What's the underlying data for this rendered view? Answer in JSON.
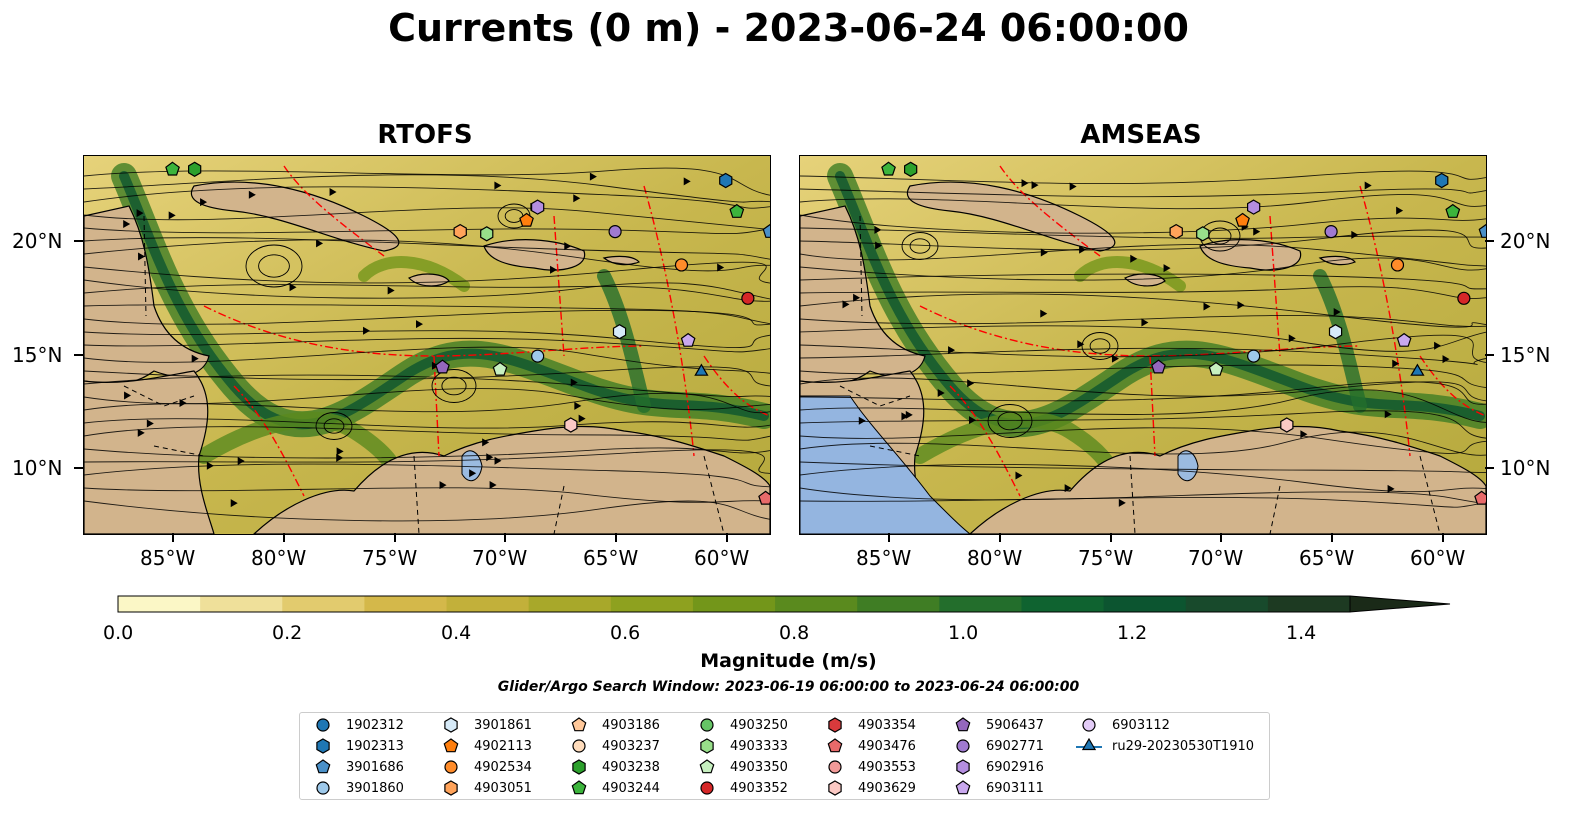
{
  "title": "Currents (0 m) - 2023-06-24 06:00:00",
  "panels": [
    {
      "title": "RTOFS"
    },
    {
      "title": "AMSEAS"
    }
  ],
  "axes": {
    "lon_labels": [
      "85°W",
      "80°W",
      "75°W",
      "70°W",
      "65°W",
      "60°W"
    ],
    "lat_labels": [
      "20°N",
      "15°N",
      "10°N"
    ],
    "lon_range": [
      -89,
      -58
    ],
    "lat_range": [
      7,
      24
    ]
  },
  "colorbar": {
    "label": "Magnitude (m/s)",
    "ticks": [
      "0.0",
      "0.2",
      "0.4",
      "0.6",
      "0.8",
      "1.0",
      "1.2",
      "1.4"
    ],
    "range": [
      0.0,
      1.5
    ],
    "extend": "max",
    "colors": [
      "#fbf7c6",
      "#efe09a",
      "#e2cb6e",
      "#d4b84a",
      "#c2b03a",
      "#a8a82a",
      "#8ea11f",
      "#73961a",
      "#5a8a1e",
      "#3f7d24",
      "#236e2c",
      "#0f6330",
      "#0c5530",
      "#184a2c",
      "#1d3a22",
      "#1a2a18"
    ]
  },
  "search_window": "Glider/Argo Search Window: 2023-06-19 06:00:00 to 2023-06-24 06:00:00",
  "legend": {
    "items": [
      {
        "label": "1902312",
        "marker": "circle",
        "color": "#1f77b4"
      },
      {
        "label": "1902313",
        "marker": "hexagon",
        "color": "#1f77b4"
      },
      {
        "label": "3901686",
        "marker": "pentagon",
        "color": "#4a90c8"
      },
      {
        "label": "3901860",
        "marker": "circle",
        "color": "#9ec9ea"
      },
      {
        "label": "3901861",
        "marker": "hexagon",
        "color": "#d6eaf8"
      },
      {
        "label": "4902113",
        "marker": "pentagon",
        "color": "#ff7f0e"
      },
      {
        "label": "4902534",
        "marker": "circle",
        "color": "#ff8c2a"
      },
      {
        "label": "4903051",
        "marker": "hexagon",
        "color": "#ffa35a"
      },
      {
        "label": "4903186",
        "marker": "pentagon",
        "color": "#ffc89a"
      },
      {
        "label": "4903237",
        "marker": "circle",
        "color": "#ffdcbc"
      },
      {
        "label": "4903238",
        "marker": "hexagon",
        "color": "#2ca02c"
      },
      {
        "label": "4903244",
        "marker": "pentagon",
        "color": "#3cb43c"
      },
      {
        "label": "4903250",
        "marker": "circle",
        "color": "#66c466"
      },
      {
        "label": "4903333",
        "marker": "hexagon",
        "color": "#98df8a"
      },
      {
        "label": "4903350",
        "marker": "pentagon",
        "color": "#c7f0c0"
      },
      {
        "label": "4903352",
        "marker": "circle",
        "color": "#d62728"
      },
      {
        "label": "4903354",
        "marker": "hexagon",
        "color": "#d83a3c"
      },
      {
        "label": "4903476",
        "marker": "pentagon",
        "color": "#e86a6a"
      },
      {
        "label": "4903553",
        "marker": "circle",
        "color": "#f29a98"
      },
      {
        "label": "4903629",
        "marker": "hexagon",
        "color": "#fbc9c4"
      },
      {
        "label": "5906437",
        "marker": "pentagon",
        "color": "#9467bd"
      },
      {
        "label": "6902771",
        "marker": "circle",
        "color": "#a07ad0"
      },
      {
        "label": "6902916",
        "marker": "hexagon",
        "color": "#b48ee0"
      },
      {
        "label": "6903111",
        "marker": "pentagon",
        "color": "#c9a8ee"
      },
      {
        "label": "6903112",
        "marker": "circle",
        "color": "#e3ccf7"
      },
      {
        "label": "ru29-20230530T1910",
        "marker": "triangle-line",
        "color": "#1f77b4"
      }
    ]
  },
  "floats": [
    {
      "id": "4903244",
      "lon": -85.0,
      "lat": 23.4
    },
    {
      "id": "4903238",
      "lon": -84.0,
      "lat": 23.4
    },
    {
      "id": "1902313",
      "lon": -60.0,
      "lat": 22.9
    },
    {
      "id": "4903244",
      "lon": -59.5,
      "lat": 21.5
    },
    {
      "id": "3901686",
      "lon": -58.0,
      "lat": 20.6
    },
    {
      "id": "6902916",
      "lon": -68.5,
      "lat": 21.7
    },
    {
      "id": "4902113",
      "lon": -69.0,
      "lat": 21.1
    },
    {
      "id": "6902771",
      "lon": -65.0,
      "lat": 20.6
    },
    {
      "id": "4903051",
      "lon": -72.0,
      "lat": 20.6
    },
    {
      "id": "4903333",
      "lon": -70.8,
      "lat": 20.5
    },
    {
      "id": "4902534",
      "lon": -62.0,
      "lat": 19.1
    },
    {
      "id": "4903352",
      "lon": -59.0,
      "lat": 17.6
    },
    {
      "id": "3901861",
      "lon": -64.8,
      "lat": 16.1
    },
    {
      "id": "6903111",
      "lon": -61.7,
      "lat": 15.7
    },
    {
      "id": "3901860",
      "lon": -68.5,
      "lat": 15.0
    },
    {
      "id": "5906437",
      "lon": -72.8,
      "lat": 14.5
    },
    {
      "id": "4903350",
      "lon": -70.2,
      "lat": 14.4
    },
    {
      "id": "ru29-20230530T1910",
      "lon": -61.1,
      "lat": 14.3
    },
    {
      "id": "4903629",
      "lon": -67.0,
      "lat": 11.9
    },
    {
      "id": "4903476",
      "lon": -58.2,
      "lat": 8.6
    }
  ]
}
